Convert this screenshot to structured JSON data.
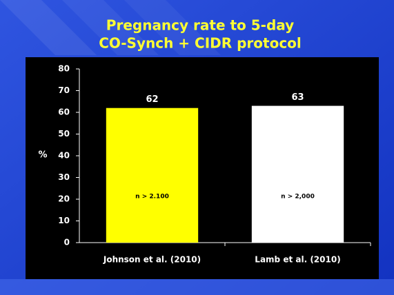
{
  "chart_data": {
    "type": "bar",
    "title": [
      "Pregnancy rate to 5-day",
      "CO-Synch + CIDR protocol"
    ],
    "y_label": "%",
    "categories": [
      "Johnson et al. (2010)",
      "Lamb et al. (2010)"
    ],
    "values": [
      62,
      63
    ],
    "colors": [
      "#ffff00",
      "#ffffff"
    ],
    "annotations": [
      "n > 2.100",
      "n > 2,000"
    ],
    "ylim": [
      0,
      80
    ],
    "yticks": [
      0,
      10,
      20,
      30,
      40,
      50,
      60,
      70,
      80
    ],
    "grid": false
  }
}
